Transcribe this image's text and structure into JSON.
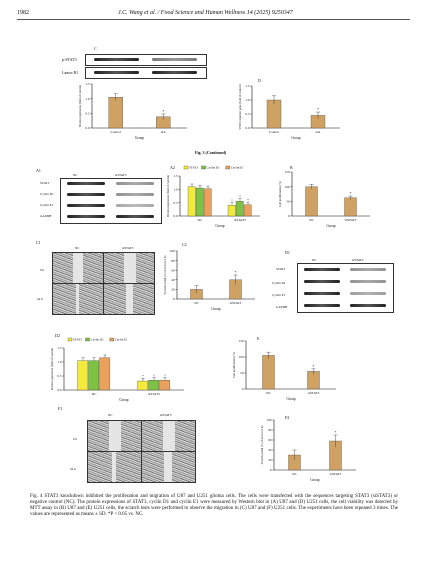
{
  "header": {
    "page": "1982",
    "journal": "J.C. Wang et al. / Food Science and Human Wellness 14 (2025) 9250347"
  },
  "fig3": {
    "panel_c": "C",
    "panel_d": "D",
    "blot_rows": [
      "p-STAT3",
      "Lamin B1"
    ],
    "caption": "Fig. 3 (Continued)"
  },
  "fig4": {
    "panels": {
      "a1": "A1",
      "a2": "A2",
      "b": "B",
      "c1": "C1",
      "c2": "C2",
      "d1": "D1",
      "d2": "D2",
      "e": "E",
      "f1": "F1",
      "f2": "F2"
    },
    "groups": [
      "NC",
      "siSTAT3"
    ],
    "blot_rows": [
      "STAT3",
      "Cyclin D1",
      "Cyclin E1",
      "GAPDH"
    ],
    "times": [
      "0 h",
      "24 h"
    ],
    "caption": "Fig. 4   STAT3 knockdown inhibited the proliferation and migration of U87 and U251 glioma cells. The cells were transfected with the sequences targeting STAT3 (siSTAT3) or negative control (NC). The protein expressions of STAT3, cyclin D1 and cyclin E1 were measured by Western blot in (A) U87 and (D) U251 cells, the cell viability was detected by MTT assay in (B) U87 and (E) U251 cells, the scratch tests were performed to observe the migration in (C) U87 and (F) U251 cells. The experiments have been repeated 3 times. The values are represented as means ± SD. *P < 0.05 vs. NC."
  },
  "colors": {
    "tan": "#cfa163",
    "yellow": "#f3ea3b",
    "green": "#7dc243",
    "orange": "#e9a15c"
  },
  "chart_data": [
    {
      "id": "fig3-c",
      "type": "bar",
      "categories": [
        "Control",
        "OA"
      ],
      "values": [
        1.05,
        0.38
      ],
      "errors": [
        0.12,
        0.1
      ],
      "ylabel": "Protein expression (fold of control)",
      "xlabel": "Group",
      "ylim": [
        0,
        1.5
      ],
      "yticks": [
        "0.0",
        "0.5",
        "1.0",
        "1.5"
      ],
      "annotations": [
        "",
        "*"
      ]
    },
    {
      "id": "fig3-d",
      "type": "bar",
      "categories": [
        "Control",
        "OA"
      ],
      "values": [
        1.0,
        0.45
      ],
      "errors": [
        0.15,
        0.12
      ],
      "ylabel": "STAT3 reporter gene (fold of control)",
      "xlabel": "Group",
      "ylim": [
        0,
        1.5
      ],
      "yticks": [
        "0.0",
        "0.5",
        "1.0",
        "1.5"
      ],
      "annotations": [
        "",
        "*"
      ]
    },
    {
      "id": "fig4-a2",
      "type": "bar",
      "categories": [
        "NC",
        "siSTAT3"
      ],
      "series": [
        {
          "name": "STAT3",
          "values": [
            1.1,
            0.4
          ]
        },
        {
          "name": "Cyclin D1",
          "values": [
            1.05,
            0.55
          ]
        },
        {
          "name": "Cyclin E1",
          "values": [
            1.02,
            0.42
          ]
        }
      ],
      "ylabel": "Protein expression (fold of control)",
      "xlabel": "Group",
      "ylim": [
        0,
        1.5
      ],
      "yticks": [
        "0.0",
        "0.5",
        "1.0",
        "1.5"
      ],
      "annotations": [
        "",
        "*"
      ]
    },
    {
      "id": "fig4-b",
      "type": "bar",
      "categories": [
        "NC",
        "siSTAT3"
      ],
      "values": [
        100,
        62
      ],
      "errors": [
        8,
        6
      ],
      "ylabel": "Cell proliferation (%)",
      "xlabel": "Group",
      "ylim": [
        0,
        150
      ],
      "yticks": [
        "0",
        "50",
        "100",
        "150"
      ],
      "annotations": [
        "",
        "*"
      ]
    },
    {
      "id": "fig4-c2",
      "type": "bar",
      "categories": [
        "NC",
        "siSTAT3"
      ],
      "values": [
        20,
        40
      ],
      "errors": [
        8,
        10
      ],
      "ylabel": "Scratch width (% of 24 h to 0 h)",
      "xlabel": "Group",
      "ylim": [
        0,
        100
      ],
      "yticks": [
        "0",
        "20",
        "40",
        "60",
        "80",
        "100"
      ],
      "annotations": [
        "",
        "*"
      ]
    },
    {
      "id": "fig4-d2",
      "type": "bar",
      "categories": [
        "NC",
        "siSTAT3"
      ],
      "series": [
        {
          "name": "STAT3",
          "values": [
            1.05,
            0.32
          ]
        },
        {
          "name": "Cyclin D1",
          "values": [
            1.05,
            0.35
          ]
        },
        {
          "name": "Cyclin E1",
          "values": [
            1.15,
            0.35
          ]
        }
      ],
      "ylabel": "Protein expression (fold of control)",
      "xlabel": "Group",
      "ylim": [
        0,
        1.5
      ],
      "yticks": [
        "0.0",
        "0.5",
        "1.0",
        "1.5"
      ],
      "annotations": [
        "",
        "*"
      ]
    },
    {
      "id": "fig4-e",
      "type": "bar",
      "categories": [
        "NC",
        "siSTAT3"
      ],
      "values": [
        105,
        55
      ],
      "errors": [
        10,
        8
      ],
      "ylabel": "Cell proliferation (%)",
      "xlabel": "Group",
      "ylim": [
        0,
        150
      ],
      "yticks": [
        "0",
        "50",
        "100",
        "150"
      ],
      "annotations": [
        "",
        "*"
      ]
    },
    {
      "id": "fig4-f2",
      "type": "bar",
      "categories": [
        "NC",
        "siSTAT3"
      ],
      "values": [
        30,
        58
      ],
      "errors": [
        10,
        12
      ],
      "ylabel": "Scratch width (% of 24 h to 0 h)",
      "xlabel": "Group",
      "ylim": [
        0,
        100
      ],
      "yticks": [
        "0",
        "20",
        "40",
        "60",
        "80",
        "100"
      ],
      "annotations": [
        "",
        "*"
      ]
    }
  ]
}
